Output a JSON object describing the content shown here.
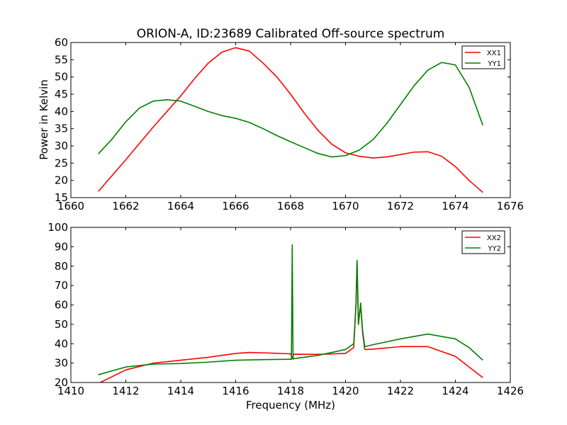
{
  "figure": {
    "title": "ORION-A, ID:23689 Calibrated Off-source spectrum",
    "ylabel_top": "Power in Kelvin",
    "xlabel_bottom": "Frequency (MHz)"
  },
  "chart_data": [
    {
      "type": "line",
      "title": "ORION-A, ID:23689 Calibrated Off-source spectrum",
      "xlabel": "",
      "ylabel": "Power in Kelvin",
      "xlim": [
        1660,
        1676
      ],
      "ylim": [
        15,
        60
      ],
      "xticks": [
        1660,
        1662,
        1664,
        1666,
        1668,
        1670,
        1672,
        1674,
        1676
      ],
      "yticks": [
        15,
        20,
        25,
        30,
        35,
        40,
        45,
        50,
        55,
        60
      ],
      "grid": false,
      "legend": "top-right",
      "series": [
        {
          "name": "XX1",
          "color": "#ff0000",
          "x": [
            1661.0,
            1662.0,
            1663.0,
            1663.5,
            1664.0,
            1664.5,
            1665.0,
            1665.5,
            1666.0,
            1666.5,
            1667.0,
            1667.5,
            1668.0,
            1668.5,
            1669.0,
            1669.5,
            1670.0,
            1670.5,
            1671.0,
            1671.5,
            1672.0,
            1672.5,
            1673.0,
            1673.5,
            1674.0,
            1674.5,
            1675.0
          ],
          "y": [
            16.8,
            26.0,
            35.5,
            40.0,
            44.5,
            49.5,
            54.0,
            57.2,
            58.5,
            57.5,
            54.0,
            50.0,
            45.0,
            39.5,
            34.5,
            30.5,
            28.0,
            27.0,
            26.5,
            26.8,
            27.5,
            28.2,
            28.3,
            27.0,
            24.0,
            20.0,
            16.5
          ]
        },
        {
          "name": "YY1",
          "color": "#008000",
          "x": [
            1661.0,
            1661.5,
            1662.0,
            1662.5,
            1663.0,
            1663.5,
            1664.0,
            1664.5,
            1665.0,
            1665.5,
            1666.0,
            1666.5,
            1667.0,
            1667.5,
            1668.0,
            1668.5,
            1669.0,
            1669.5,
            1670.0,
            1670.5,
            1671.0,
            1671.5,
            1672.0,
            1672.5,
            1673.0,
            1673.5,
            1674.0,
            1674.5,
            1675.0
          ],
          "y": [
            27.7,
            32.0,
            37.0,
            41.0,
            43.0,
            43.4,
            43.0,
            41.5,
            40.0,
            38.8,
            38.0,
            36.8,
            35.0,
            33.0,
            31.2,
            29.5,
            27.8,
            26.8,
            27.2,
            28.8,
            31.8,
            36.5,
            42.0,
            47.5,
            52.0,
            54.2,
            53.5,
            47.0,
            36.0
          ]
        }
      ]
    },
    {
      "type": "line",
      "title": "",
      "xlabel": "Frequency (MHz)",
      "ylabel": "",
      "xlim": [
        1410,
        1426
      ],
      "ylim": [
        20,
        100
      ],
      "xticks": [
        1410,
        1412,
        1414,
        1416,
        1418,
        1420,
        1422,
        1424,
        1426
      ],
      "yticks": [
        20,
        30,
        40,
        50,
        60,
        70,
        80,
        90,
        100
      ],
      "grid": false,
      "legend": "top-right",
      "series": [
        {
          "name": "XX2",
          "color": "#ff0000",
          "x": [
            1411.0,
            1412.0,
            1413.0,
            1414.0,
            1415.0,
            1416.0,
            1416.5,
            1417.0,
            1418.0,
            1418.06,
            1418.12,
            1419.0,
            1420.0,
            1420.3,
            1420.38,
            1420.42,
            1420.47,
            1420.55,
            1420.62,
            1420.7,
            1421.0,
            1422.0,
            1423.0,
            1424.0,
            1424.5,
            1425.0
          ],
          "y": [
            19.5,
            26.5,
            30.0,
            31.5,
            33.0,
            35.0,
            35.5,
            35.3,
            34.8,
            32.5,
            34.6,
            34.5,
            35.0,
            38.0,
            60.0,
            82.0,
            50.0,
            60.0,
            46.0,
            37.0,
            37.2,
            38.5,
            38.5,
            33.5,
            28.0,
            22.5
          ]
        },
        {
          "name": "YY2",
          "color": "#008000",
          "x": [
            1411.0,
            1412.0,
            1413.0,
            1414.0,
            1415.0,
            1416.0,
            1417.0,
            1418.0,
            1418.03,
            1418.06,
            1418.09,
            1418.12,
            1419.0,
            1420.0,
            1420.3,
            1420.38,
            1420.42,
            1420.47,
            1420.55,
            1420.62,
            1420.7,
            1421.0,
            1422.0,
            1423.0,
            1424.0,
            1424.5,
            1425.0
          ],
          "y": [
            24.0,
            28.0,
            29.5,
            29.8,
            30.5,
            31.5,
            31.8,
            32.0,
            32.0,
            91.0,
            32.0,
            32.3,
            34.0,
            37.0,
            40.0,
            60.0,
            83.0,
            50.0,
            61.0,
            47.0,
            38.5,
            39.5,
            42.5,
            45.0,
            42.5,
            38.0,
            31.5
          ]
        }
      ]
    }
  ]
}
